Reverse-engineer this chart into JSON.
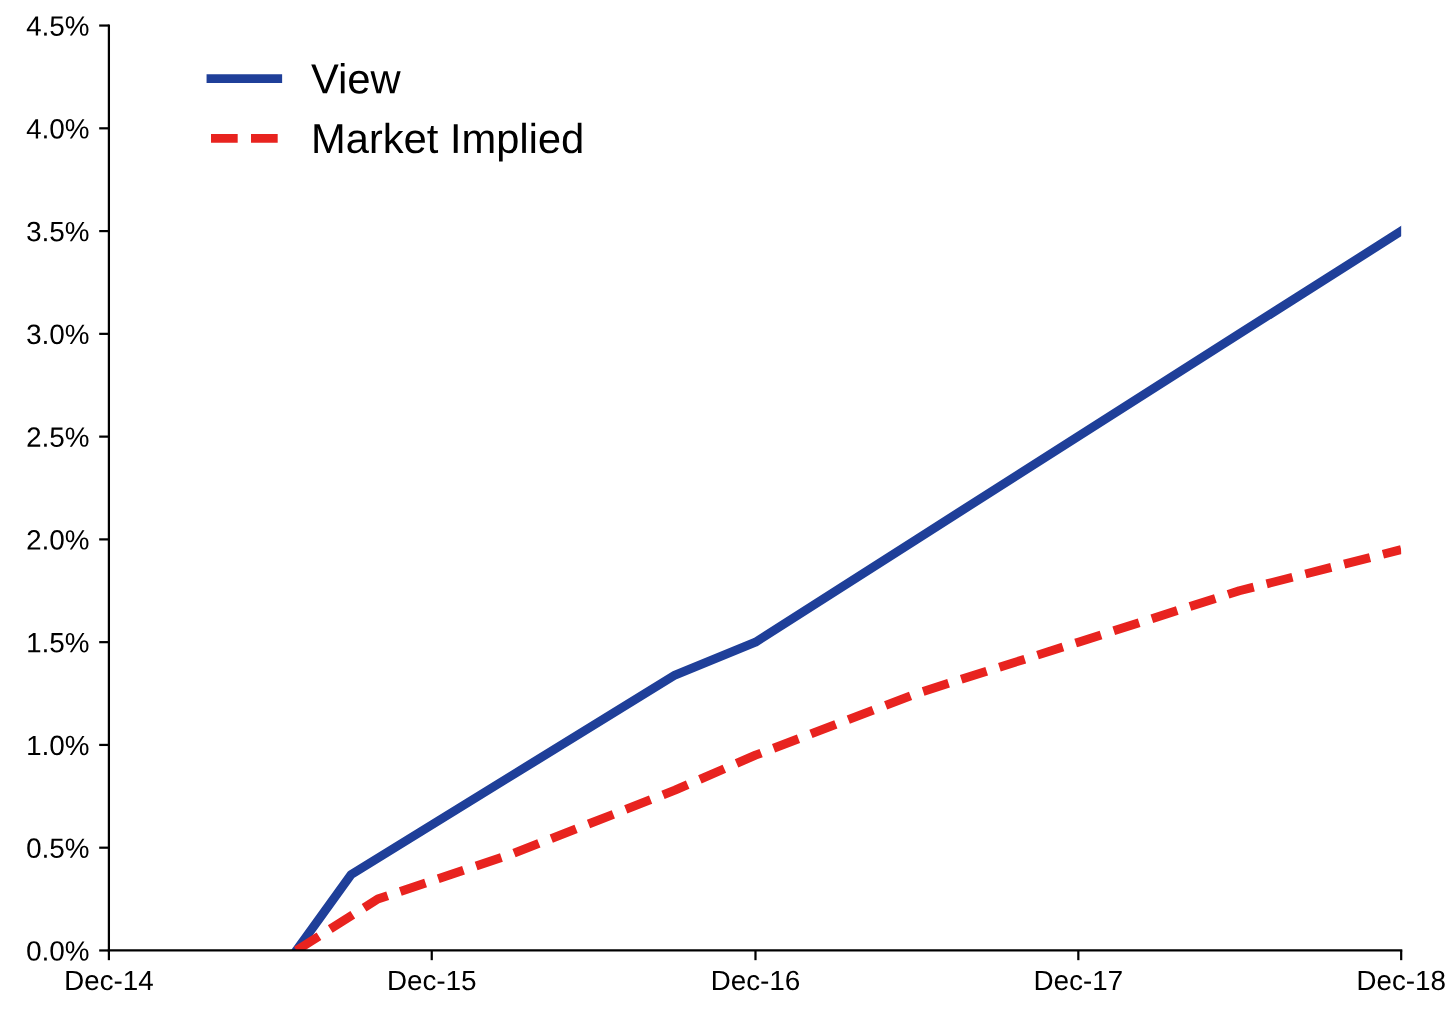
{
  "chart_data": {
    "type": "line",
    "xlim": [
      "2014-12",
      "2018-12"
    ],
    "xticks": [
      {
        "value": "2014-12",
        "label": "Dec-14"
      },
      {
        "value": "2015-12",
        "label": "Dec-15"
      },
      {
        "value": "2016-12",
        "label": "Dec-16"
      },
      {
        "value": "2017-12",
        "label": "Dec-17"
      },
      {
        "value": "2018-12",
        "label": "Dec-18"
      }
    ],
    "ylim": [
      0,
      4.5
    ],
    "yticks": [
      {
        "value": 0,
        "label": "0.0%"
      },
      {
        "value": 0.5,
        "label": "0.5%"
      },
      {
        "value": 1,
        "label": "1.0%"
      },
      {
        "value": 1.5,
        "label": "1.5%"
      },
      {
        "value": 2,
        "label": "2.0%"
      },
      {
        "value": 2.5,
        "label": "2.5%"
      },
      {
        "value": 3,
        "label": "3.0%"
      },
      {
        "value": 3.5,
        "label": "3.5%"
      },
      {
        "value": 4,
        "label": "4.0%"
      },
      {
        "value": 4.5,
        "label": "4.5%"
      }
    ],
    "grid": false,
    "legend": "top left",
    "series": [
      {
        "name": "View",
        "color": "#1f3f99",
        "line_style": "solid",
        "x": [
          "2015-07",
          "2015-09",
          "2016-09",
          "2016-12",
          "2017-06",
          "2018-06",
          "2018-12"
        ],
        "values": [
          0,
          0.37,
          1.34,
          1.5,
          2.0,
          3.0,
          3.5
        ]
      },
      {
        "name": "Market Implied",
        "color": "#e8231f",
        "line_style": "dashed",
        "x": [
          "2015-07",
          "2015-10",
          "2016-03",
          "2016-09",
          "2016-12",
          "2017-06",
          "2017-12",
          "2018-06",
          "2018-12"
        ],
        "values": [
          0,
          0.25,
          0.47,
          0.78,
          0.95,
          1.25,
          1.5,
          1.75,
          1.95
        ]
      }
    ]
  }
}
